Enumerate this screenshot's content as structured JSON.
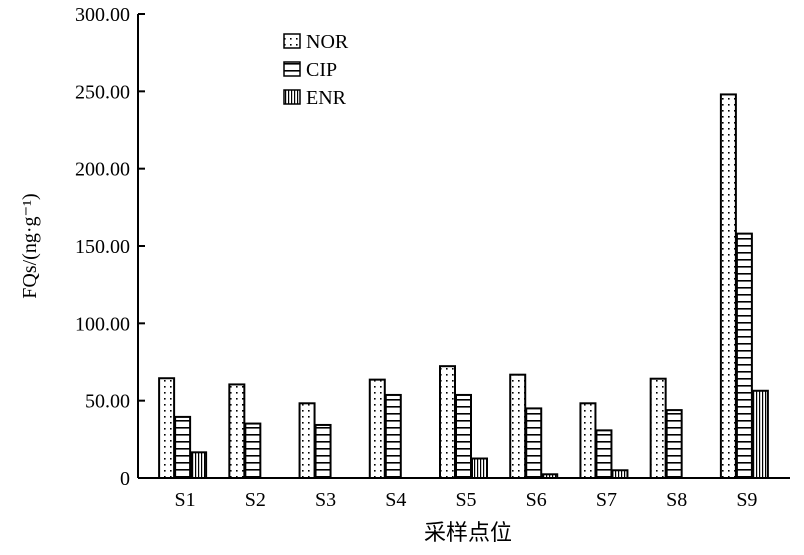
{
  "chart_data": {
    "type": "bar",
    "title": "",
    "xlabel": "采样点位",
    "ylabel": "FQs/(ng·g⁻¹)",
    "ylim": [
      0,
      300
    ],
    "yticks": [
      "0",
      "50.00",
      "100.00",
      "150.00",
      "200.00",
      "250.00",
      "300.00"
    ],
    "grid": false,
    "legend_position": "top-left",
    "categories": [
      "S1",
      "S2",
      "S3",
      "S4",
      "S5",
      "S6",
      "S7",
      "S8",
      "S9"
    ],
    "series": [
      {
        "name": "NOR",
        "pattern": "dots",
        "values": [
          64.5,
          60.5,
          48.3,
          63.6,
          72.3,
          66.8,
          48.3,
          64.2,
          248.0
        ]
      },
      {
        "name": "CIP",
        "pattern": "horizontal-lines",
        "values": [
          39.5,
          35.2,
          34.3,
          53.7,
          53.7,
          45.0,
          30.8,
          43.9,
          158.0
        ]
      },
      {
        "name": "ENR",
        "pattern": "vertical-lines",
        "values": [
          16.6,
          0,
          0,
          0,
          12.6,
          2.4,
          5.0,
          0,
          56.4
        ]
      }
    ]
  }
}
